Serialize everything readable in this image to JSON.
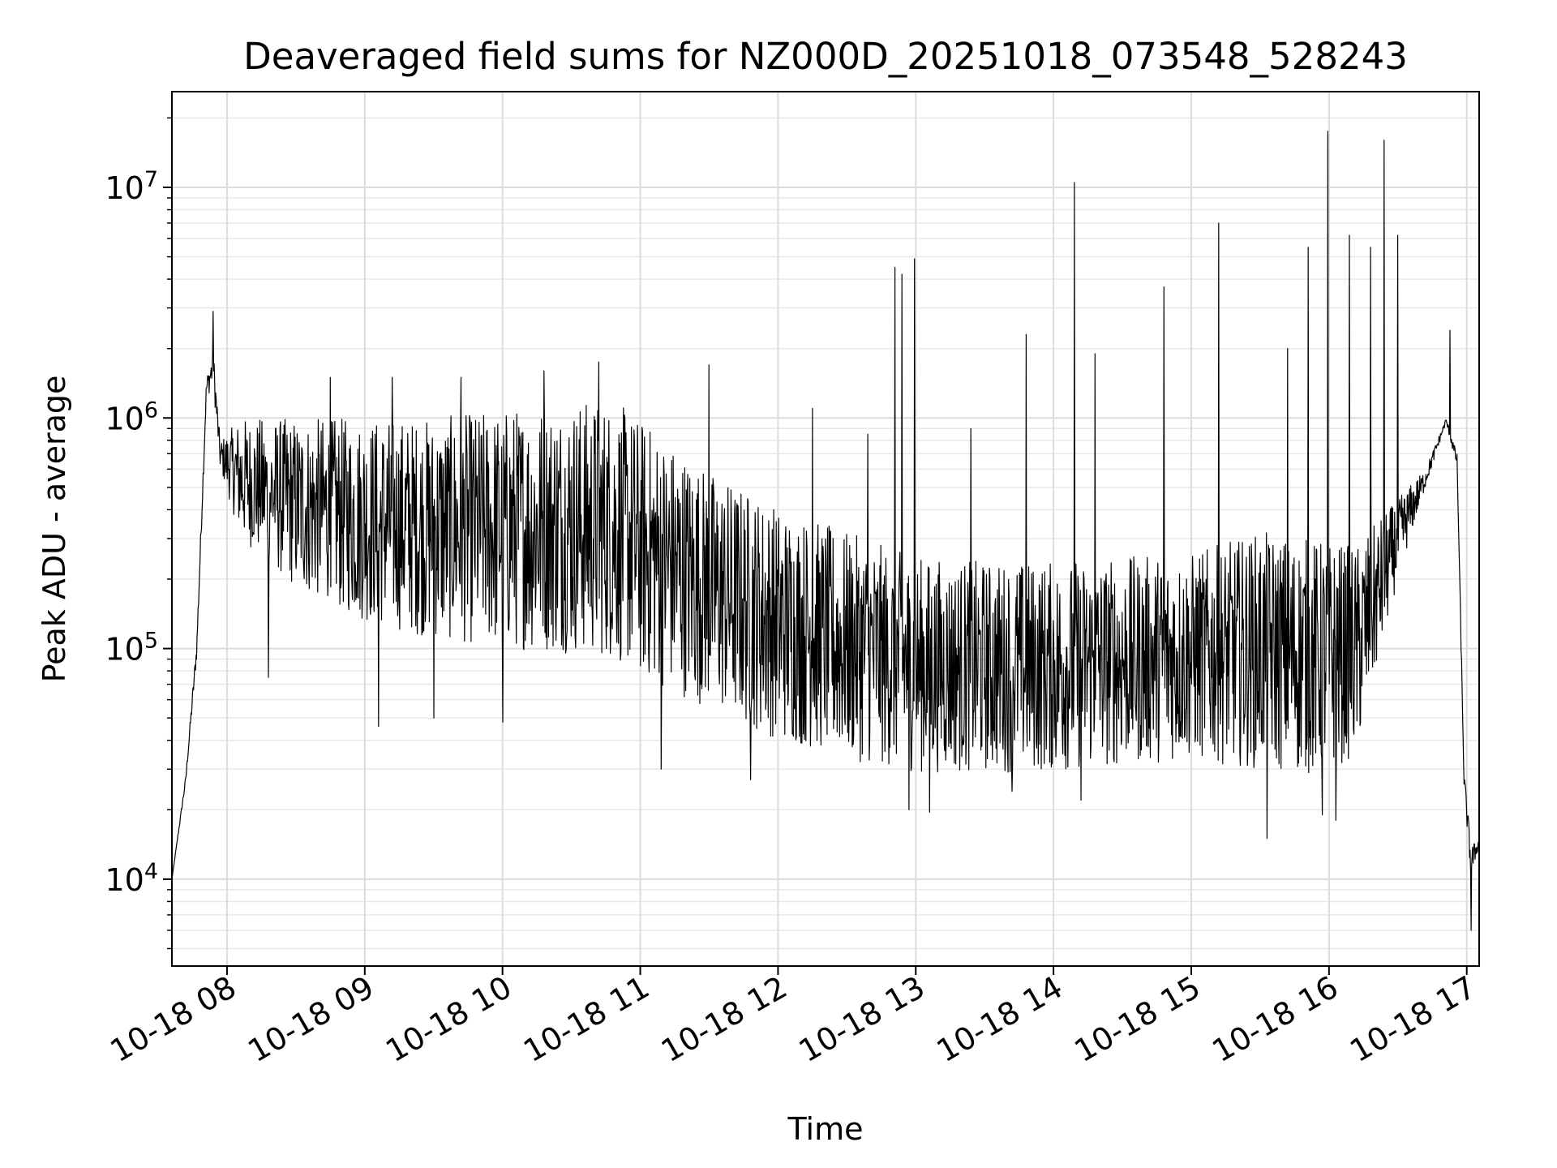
{
  "chart_data": {
    "type": "line",
    "title": "Deaveraged field sums for NZ000D_20251018_073548_528243",
    "xlabel": "Time",
    "ylabel": "Peak ADU - average",
    "yscale": "log",
    "ylim": [
      4200,
      26000000
    ],
    "xlim_hours": [
      7.6,
      17.09
    ],
    "grid": true,
    "line_color": "#000000",
    "x_ticks": [
      {
        "hour": 8,
        "label": "10-18 08"
      },
      {
        "hour": 9,
        "label": "10-18 09"
      },
      {
        "hour": 10,
        "label": "10-18 10"
      },
      {
        "hour": 11,
        "label": "10-18 11"
      },
      {
        "hour": 12,
        "label": "10-18 12"
      },
      {
        "hour": 13,
        "label": "10-18 13"
      },
      {
        "hour": 14,
        "label": "10-18 14"
      },
      {
        "hour": 15,
        "label": "10-18 15"
      },
      {
        "hour": 16,
        "label": "10-18 16"
      },
      {
        "hour": 17,
        "label": "10-18 17"
      }
    ],
    "y_ticks": [
      {
        "value": 10000,
        "base": "10",
        "exp": "4"
      },
      {
        "value": 100000,
        "base": "10",
        "exp": "5"
      },
      {
        "value": 1000000,
        "base": "10",
        "exp": "6"
      },
      {
        "value": 10000000,
        "base": "10",
        "exp": "7"
      }
    ],
    "series": [
      {
        "baseline_upper": [
          [
            7.6,
            10000
          ],
          [
            7.7,
            28000
          ],
          [
            7.78,
            110000
          ],
          [
            7.85,
            1500000
          ],
          [
            7.9,
            2000000
          ],
          [
            7.95,
            800000
          ],
          [
            8.1,
            1000000
          ],
          [
            8.5,
            1000000
          ],
          [
            9.0,
            1000000
          ],
          [
            9.5,
            1000000
          ],
          [
            10.0,
            1100000
          ],
          [
            10.5,
            1200000
          ],
          [
            10.8,
            1200000
          ],
          [
            11.0,
            1000000
          ],
          [
            11.5,
            600000
          ],
          [
            12.0,
            420000
          ],
          [
            12.5,
            320000
          ],
          [
            13.0,
            250000
          ],
          [
            13.5,
            240000
          ],
          [
            14.0,
            240000
          ],
          [
            14.5,
            250000
          ],
          [
            15.0,
            260000
          ],
          [
            15.5,
            320000
          ],
          [
            15.9,
            300000
          ],
          [
            16.2,
            280000
          ],
          [
            16.5,
            450000
          ],
          [
            16.7,
            600000
          ],
          [
            16.85,
            1000000
          ],
          [
            16.93,
            700000
          ],
          [
            16.98,
            30000
          ],
          [
            17.03,
            14000
          ],
          [
            17.09,
            15000
          ]
        ],
        "baseline_lower": [
          [
            7.6,
            10000
          ],
          [
            7.7,
            26000
          ],
          [
            7.78,
            90000
          ],
          [
            7.85,
            1200000
          ],
          [
            7.9,
            1400000
          ],
          [
            7.95,
            600000
          ],
          [
            8.1,
            300000
          ],
          [
            8.5,
            180000
          ],
          [
            9.0,
            130000
          ],
          [
            9.5,
            110000
          ],
          [
            10.0,
            100000
          ],
          [
            10.5,
            95000
          ],
          [
            10.8,
            90000
          ],
          [
            11.0,
            75000
          ],
          [
            11.5,
            55000
          ],
          [
            12.0,
            40000
          ],
          [
            12.5,
            33000
          ],
          [
            13.0,
            29000
          ],
          [
            13.5,
            29000
          ],
          [
            14.0,
            29000
          ],
          [
            14.5,
            31000
          ],
          [
            15.0,
            33000
          ],
          [
            15.5,
            30000
          ],
          [
            15.9,
            28000
          ],
          [
            16.2,
            34000
          ],
          [
            16.5,
            200000
          ],
          [
            16.7,
            500000
          ],
          [
            16.85,
            950000
          ],
          [
            16.93,
            600000
          ],
          [
            16.98,
            25000
          ],
          [
            17.03,
            10000
          ],
          [
            17.09,
            14000
          ]
        ],
        "spikes": [
          [
            7.9,
            2900000
          ],
          [
            8.3,
            1400000
          ],
          [
            8.75,
            1500000
          ],
          [
            9.2,
            1500000
          ],
          [
            9.7,
            1500000
          ],
          [
            10.3,
            1600000
          ],
          [
            10.7,
            1750000
          ],
          [
            11.5,
            1700000
          ],
          [
            12.25,
            1100000
          ],
          [
            12.65,
            850000
          ],
          [
            12.85,
            4500000
          ],
          [
            12.9,
            4200000
          ],
          [
            12.99,
            4900000
          ],
          [
            13.4,
            900000
          ],
          [
            13.8,
            2300000
          ],
          [
            14.15,
            10500000
          ],
          [
            14.3,
            1900000
          ],
          [
            14.8,
            3700000
          ],
          [
            15.2,
            7000000
          ],
          [
            15.7,
            2000000
          ],
          [
            15.85,
            5500000
          ],
          [
            15.99,
            17500000
          ],
          [
            16.15,
            6200000
          ],
          [
            16.3,
            5500000
          ],
          [
            16.4,
            16000000
          ],
          [
            16.5,
            6200000
          ],
          [
            16.88,
            2400000
          ]
        ],
        "dips": [
          [
            8.3,
            75000
          ],
          [
            9.1,
            46000
          ],
          [
            9.5,
            50000
          ],
          [
            10.0,
            48000
          ],
          [
            11.15,
            30000
          ],
          [
            11.8,
            27000
          ],
          [
            12.95,
            20000
          ],
          [
            13.1,
            19500
          ],
          [
            13.7,
            24000
          ],
          [
            14.2,
            22000
          ],
          [
            15.55,
            15000
          ],
          [
            15.95,
            19000
          ],
          [
            16.05,
            18000
          ],
          [
            17.03,
            6000
          ]
        ]
      }
    ]
  }
}
